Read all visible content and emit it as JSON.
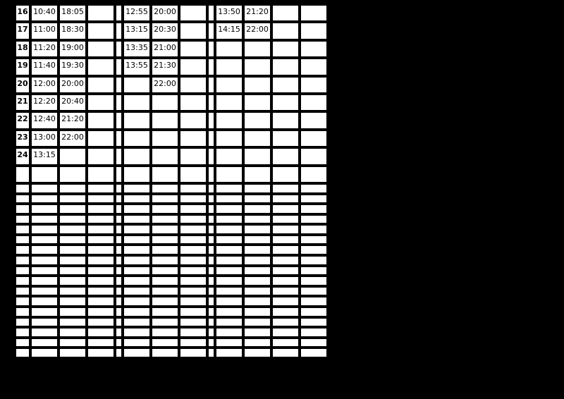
{
  "colors": {
    "page_background": "#000000",
    "cell_background": "#ffffff",
    "text": "#000000"
  },
  "table": {
    "numbered_rows": [
      {
        "num": "16",
        "times": [
          "10:40",
          "18:05",
          "",
          "12:55",
          "20:00",
          "",
          "13:50",
          "21:20",
          "",
          ""
        ]
      },
      {
        "num": "17",
        "times": [
          "11:00",
          "18:30",
          "",
          "13:15",
          "20:30",
          "",
          "14:15",
          "22:00",
          "",
          ""
        ]
      },
      {
        "num": "18",
        "times": [
          "11:20",
          "19:00",
          "",
          "13:35",
          "21:00",
          "",
          "",
          "",
          "",
          ""
        ]
      },
      {
        "num": "19",
        "times": [
          "11:40",
          "19:30",
          "",
          "13:55",
          "21:30",
          "",
          "",
          "",
          "",
          ""
        ]
      },
      {
        "num": "20",
        "times": [
          "12:00",
          "20:00",
          "",
          "",
          "22:00",
          "",
          "",
          "",
          "",
          ""
        ]
      },
      {
        "num": "21",
        "times": [
          "12:20",
          "20:40",
          "",
          "",
          "",
          "",
          "",
          "",
          "",
          ""
        ]
      },
      {
        "num": "22",
        "times": [
          "12:40",
          "21:20",
          "",
          "",
          "",
          "",
          "",
          "",
          "",
          ""
        ]
      },
      {
        "num": "23",
        "times": [
          "13:00",
          "22:00",
          "",
          "",
          "",
          "",
          "",
          "",
          "",
          ""
        ]
      },
      {
        "num": "24",
        "times": [
          "13:15",
          "",
          "",
          "",
          "",
          "",
          "",
          "",
          "",
          ""
        ]
      }
    ],
    "trailing_empty_rows": {
      "tall": 1,
      "short": 17
    }
  }
}
